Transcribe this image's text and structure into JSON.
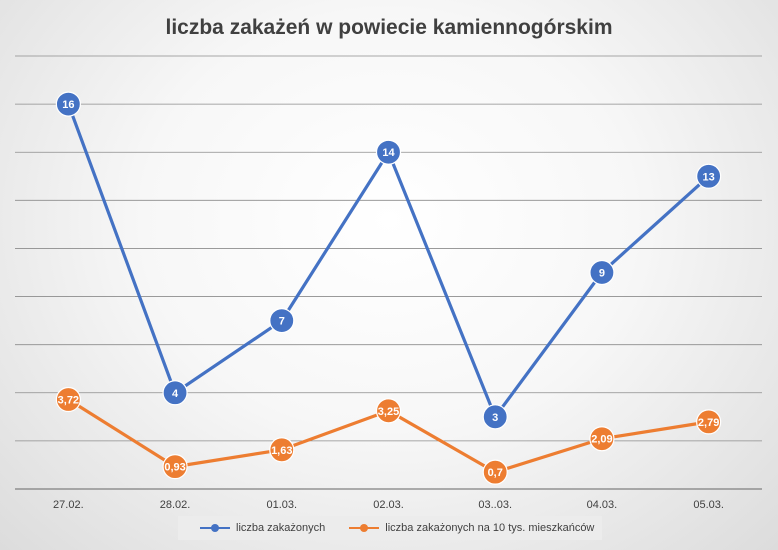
{
  "chart_data": {
    "type": "line",
    "title": "liczba zakażeń w powiecie kamiennogórskim",
    "categories": [
      "27.02.",
      "28.02.",
      "01.03.",
      "02.03.",
      "03..03.",
      "04.03.",
      "05.03."
    ],
    "series": [
      {
        "name": "liczba zakażonych",
        "values": [
          16,
          4,
          7,
          14,
          3,
          9,
          13
        ],
        "labels": [
          "16",
          "4",
          "7",
          "14",
          "3",
          "9",
          "13"
        ],
        "color": "#4472c4"
      },
      {
        "name": "liczba zakażonych na 10 tys. mieszkańców",
        "values": [
          3.72,
          0.93,
          1.63,
          3.25,
          0.7,
          2.09,
          2.79
        ],
        "labels": [
          "3,72",
          "0,93",
          "1,63",
          "3,25",
          "0,7",
          "2,09",
          "2,79"
        ],
        "color": "#ed7d31"
      }
    ],
    "ylim": [
      0,
      18
    ],
    "grid": true,
    "legend": "bottom",
    "gridline_color": "#8c8c8c"
  }
}
